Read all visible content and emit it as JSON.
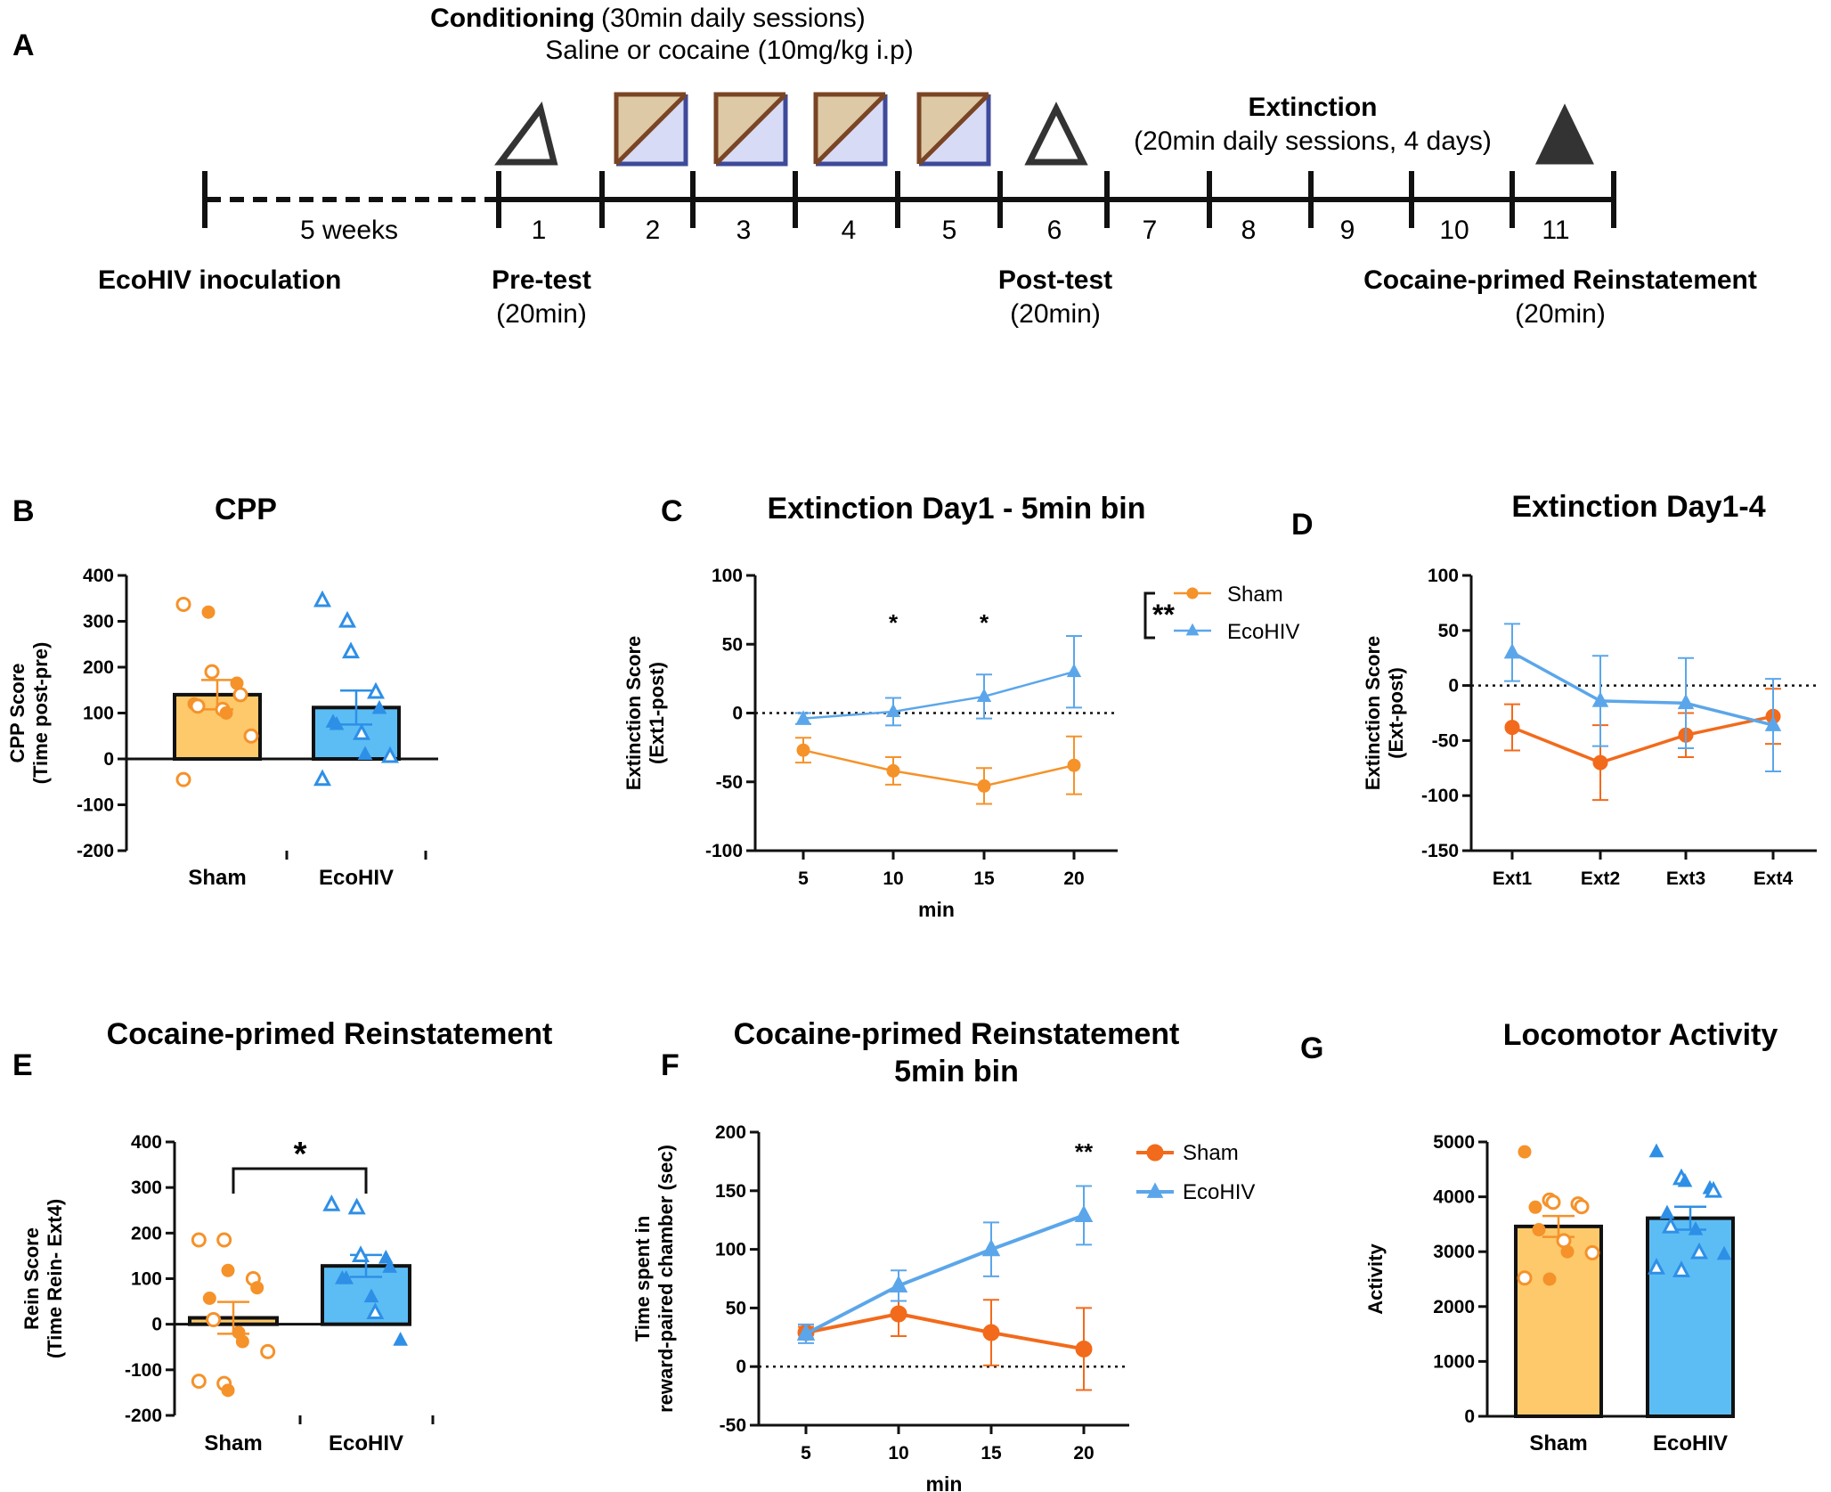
{
  "colors": {
    "sham_orange": "#F5922A",
    "sham_orange_dark": "#F26A1B",
    "sham_fill": "#FDC96B",
    "ecohiv_blue": "#2E8FE6",
    "ecohiv_line": "#5BA6EA",
    "ecohiv_fill": "#5CBDF5",
    "axis": "#111111",
    "timeline": "#111111",
    "box_fill": "#DDC9A6",
    "box_border_brown": "#7A4524",
    "box_fill_blue": "#D7DBF6",
    "box_border_blue": "#3E4A9A"
  },
  "panel_a": {
    "label": "A",
    "conditioning_title": "Conditioning",
    "conditioning_detail": "(30min daily sessions)",
    "conditioning_drug": "Saline or cocaine (10mg/kg i.p)",
    "extinction_title": "Extinction",
    "extinction_detail": "(20min daily sessions, 4 days)",
    "weeks_label": "5 weeks",
    "days": [
      "1",
      "2",
      "3",
      "4",
      "5",
      "6",
      "7",
      "8",
      "9",
      "10",
      "11"
    ],
    "inoculation": "EcoHIV inoculation",
    "pretest": "Pre-test",
    "pretest_duration": "(20min)",
    "posttest": "Post-test",
    "posttest_duration": "(20min)",
    "reinstatement": "Cocaine-primed Reinstatement",
    "reinstatement_duration": "(20min)"
  },
  "chart_data": [
    {
      "panel": "B",
      "type": "bar",
      "title": "CPP",
      "ylabel": [
        "CPP Score",
        "(Time post-pre)"
      ],
      "ylim": [
        -200,
        400
      ],
      "yticks": [
        400,
        300,
        200,
        100,
        0,
        -100,
        -200
      ],
      "categories": [
        "Sham",
        "EcoHIV"
      ],
      "values": [
        140,
        112
      ],
      "errors": [
        32,
        37
      ],
      "points": [
        [
          337,
          320,
          190,
          165,
          140,
          120,
          115,
          108,
          100,
          50,
          -45
        ],
        [
          345,
          300,
          233,
          145,
          110,
          80,
          75,
          55,
          10,
          5,
          -45
        ]
      ],
      "open_points": [
        [
          true,
          false,
          true,
          false,
          true,
          false,
          true,
          true,
          false,
          true,
          true
        ],
        [
          true,
          true,
          true,
          true,
          false,
          false,
          false,
          true,
          false,
          true,
          true
        ]
      ]
    },
    {
      "panel": "C",
      "type": "line",
      "title": "Extinction Day1 - 5min bin",
      "xlabel": "min",
      "ylabel": [
        "Extinction Score",
        "(Ext1-post)"
      ],
      "ylim": [
        -100,
        100
      ],
      "yticks": [
        100,
        50,
        0,
        -50,
        -100
      ],
      "x": [
        5,
        10,
        15,
        20
      ],
      "series": [
        {
          "name": "Sham",
          "values": [
            -27,
            -42,
            -53,
            -38
          ],
          "errors": [
            9,
            10,
            13,
            21
          ]
        },
        {
          "name": "EcoHIV",
          "values": [
            -4,
            1,
            12,
            30
          ],
          "errors": [
            4,
            10,
            16,
            26
          ]
        }
      ],
      "annotations": [
        "*",
        "*",
        "**"
      ]
    },
    {
      "panel": "D",
      "type": "line",
      "title": "Extinction Day1-4",
      "ylabel": [
        "Extinction Score",
        "(Ext-post)"
      ],
      "ylim": [
        -150,
        100
      ],
      "yticks": [
        100,
        50,
        0,
        -50,
        -100,
        -150
      ],
      "categories": [
        "Ext1",
        "Ext2",
        "Ext3",
        "Ext4"
      ],
      "series": [
        {
          "name": "Sham",
          "values": [
            -38,
            -70,
            -45,
            -28
          ],
          "errors": [
            21,
            34,
            20,
            25
          ]
        },
        {
          "name": "EcoHIV",
          "values": [
            30,
            -14,
            -16,
            -36
          ],
          "errors": [
            26,
            41,
            41,
            42
          ]
        }
      ]
    },
    {
      "panel": "E",
      "type": "bar",
      "title": "Cocaine-primed Reinstatement",
      "ylabel": [
        "Rein Score",
        "(Time Rein- Ext4)"
      ],
      "ylim": [
        -200,
        400
      ],
      "yticks": [
        400,
        300,
        200,
        100,
        0,
        -100,
        -200
      ],
      "categories": [
        "Sham",
        "EcoHIV"
      ],
      "values": [
        14,
        128
      ],
      "errors": [
        35,
        24
      ],
      "points": [
        [
          185,
          185,
          118,
          100,
          80,
          57,
          10,
          -18,
          -38,
          -60,
          -125,
          -130,
          -145
        ],
        [
          262,
          255,
          150,
          145,
          125,
          100,
          100,
          60,
          25,
          -35
        ]
      ],
      "open_points": [
        [
          true,
          true,
          false,
          true,
          false,
          false,
          true,
          false,
          false,
          true,
          true,
          true,
          false
        ],
        [
          true,
          true,
          true,
          false,
          false,
          false,
          false,
          false,
          true,
          false
        ]
      ],
      "annotations": [
        "*"
      ]
    },
    {
      "panel": "F",
      "type": "line",
      "title": "Cocaine-primed Reinstatement",
      "subtitle": "5min bin",
      "xlabel": "min",
      "ylabel": [
        "Time spent in",
        "reward-paired chamber (sec)"
      ],
      "ylim": [
        -50,
        200
      ],
      "yticks": [
        200,
        150,
        100,
        50,
        0,
        -50
      ],
      "x": [
        5,
        10,
        15,
        20
      ],
      "series": [
        {
          "name": "Sham",
          "values": [
            29,
            45,
            29,
            15
          ],
          "errors": [
            5,
            19,
            28,
            35
          ]
        },
        {
          "name": "EcoHIV",
          "values": [
            28,
            69,
            100,
            129
          ],
          "errors": [
            8,
            13,
            23,
            25
          ]
        }
      ],
      "annotations": [
        "**"
      ]
    },
    {
      "panel": "G",
      "type": "bar",
      "title": "Locomotor Activity",
      "ylabel": [
        "Activity"
      ],
      "ylim": [
        0,
        5000
      ],
      "yticks": [
        5000,
        4000,
        3000,
        2000,
        1000,
        0
      ],
      "categories": [
        "Sham",
        "EcoHIV"
      ],
      "values": [
        3460,
        3610
      ],
      "errors": [
        190,
        210
      ],
      "points": [
        [
          4820,
          3940,
          3900,
          3870,
          3820,
          3810,
          3400,
          3200,
          3000,
          2980,
          2520,
          2500
        ],
        [
          4820,
          4330,
          4280,
          4150,
          4100,
          3700,
          3450,
          3400,
          2980,
          2950,
          2700,
          2650
        ]
      ],
      "open_points": [
        [
          false,
          true,
          true,
          true,
          true,
          false,
          false,
          true,
          false,
          true,
          true,
          false
        ],
        [
          false,
          true,
          false,
          false,
          true,
          false,
          true,
          false,
          true,
          false,
          true,
          true
        ]
      ]
    }
  ]
}
